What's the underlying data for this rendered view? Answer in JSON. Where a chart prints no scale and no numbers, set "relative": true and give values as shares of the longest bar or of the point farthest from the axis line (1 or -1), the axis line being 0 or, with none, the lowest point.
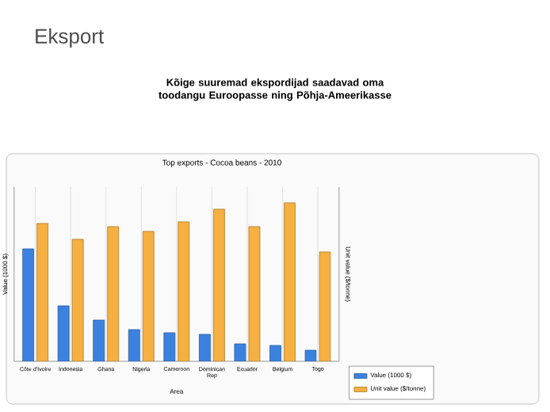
{
  "chart_data": {
    "type": "bar",
    "title": "Top exports - Cocoa beans - 2010",
    "xlabel": "Area",
    "ylabel": "Value (1000 $)",
    "y2label": "Unit value ($/tonne)",
    "annotations": [
      "Eksport",
      "Kõige suuremad ekspordijad saadavad oma toodangu Euroopasse  ning Põhja-Ameerikasse"
    ],
    "categories": [
      "Côte d'Ivoire",
      "Indonesia",
      "Ghana",
      "Nigeria",
      "Cameroon",
      "Dominican Rep",
      "Ecuador",
      "Belgium",
      "Togo"
    ],
    "relative": true,
    "grid": "x",
    "legend": "bottom right",
    "series": [
      {
        "name": "Value (1000 $)",
        "color": "#3b82e0",
        "values": [
          0.71,
          0.35,
          0.26,
          0.2,
          0.18,
          0.17,
          0.11,
          0.1,
          0.07
        ]
      },
      {
        "name": "Unit value ($/tonne)",
        "color": "#f5b041",
        "axis": "y2",
        "values": [
          0.87,
          0.77,
          0.85,
          0.82,
          0.88,
          0.96,
          0.85,
          1,
          0.69
        ]
      }
    ]
  }
}
